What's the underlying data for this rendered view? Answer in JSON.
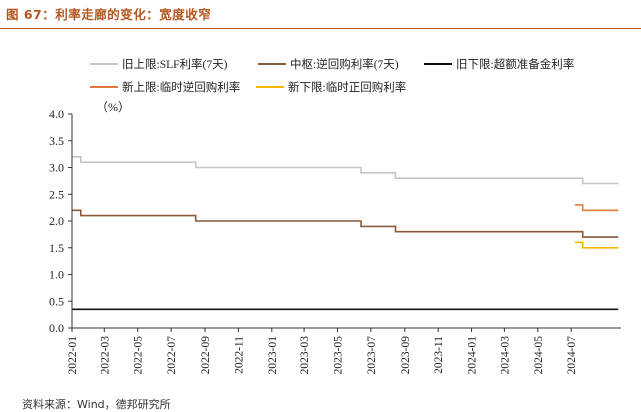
{
  "figure_title": "图 67：利率走廊的变化：宽度收窄",
  "source": "资料来源：Wind，德邦研究所",
  "colors": {
    "title": "#b5561f",
    "old_upper": "#c6c6c6",
    "mid": "#8b5a3c",
    "old_lower": "#111111",
    "new_upper": "#e07b3a",
    "new_lower": "#f5b800"
  },
  "chart_data": {
    "type": "line",
    "unit_label": "（%）",
    "ylim": [
      0,
      4.0
    ],
    "yticks": [
      "4.0",
      "3.5",
      "3.0",
      "2.5",
      "2.0",
      "1.5",
      "1.0",
      "0.5",
      "0.0"
    ],
    "ytick_values": [
      4.0,
      3.5,
      3.0,
      2.5,
      2.0,
      1.5,
      1.0,
      0.5,
      0.0
    ],
    "xticks": [
      "2022-01",
      "2022-03",
      "2022-05",
      "2022-07",
      "2022-09",
      "2022-11",
      "2023-01",
      "2023-03",
      "2023-05",
      "2023-07",
      "2023-09",
      "2023-11",
      "2024-01",
      "2024-03",
      "2024-05",
      "2024-07"
    ],
    "xlim": [
      "2022-01-01",
      "2024-09-30"
    ],
    "series": [
      {
        "name": "旧上限:SLF利率(7天)",
        "color": "#c6c6c6",
        "points": [
          [
            "2022-01-01",
            3.2
          ],
          [
            "2022-01-17",
            3.1
          ],
          [
            "2022-08-15",
            3.0
          ],
          [
            "2023-06-13",
            2.9
          ],
          [
            "2023-08-15",
            2.8
          ],
          [
            "2024-07-22",
            2.7
          ],
          [
            "2024-09-25",
            2.7
          ]
        ]
      },
      {
        "name": "中枢:逆回购利率(7天)",
        "color": "#8b5a3c",
        "points": [
          [
            "2022-01-01",
            2.2
          ],
          [
            "2022-01-17",
            2.1
          ],
          [
            "2022-08-15",
            2.0
          ],
          [
            "2023-06-13",
            1.9
          ],
          [
            "2023-08-15",
            1.8
          ],
          [
            "2024-07-22",
            1.7
          ],
          [
            "2024-09-25",
            1.7
          ]
        ]
      },
      {
        "name": "旧下限:超额准备金利率",
        "color": "#111111",
        "points": [
          [
            "2022-01-01",
            0.35
          ],
          [
            "2024-09-25",
            0.35
          ]
        ]
      },
      {
        "name": "新上限:临时逆回购利率",
        "color": "#e07b3a",
        "points": [
          [
            "2024-07-08",
            2.3
          ],
          [
            "2024-07-22",
            2.2
          ],
          [
            "2024-09-25",
            2.2
          ]
        ]
      },
      {
        "name": "新下限:临时正回购利率",
        "color": "#f5b800",
        "points": [
          [
            "2024-07-08",
            1.6
          ],
          [
            "2024-07-22",
            1.5
          ],
          [
            "2024-09-25",
            1.5
          ]
        ]
      }
    ]
  }
}
